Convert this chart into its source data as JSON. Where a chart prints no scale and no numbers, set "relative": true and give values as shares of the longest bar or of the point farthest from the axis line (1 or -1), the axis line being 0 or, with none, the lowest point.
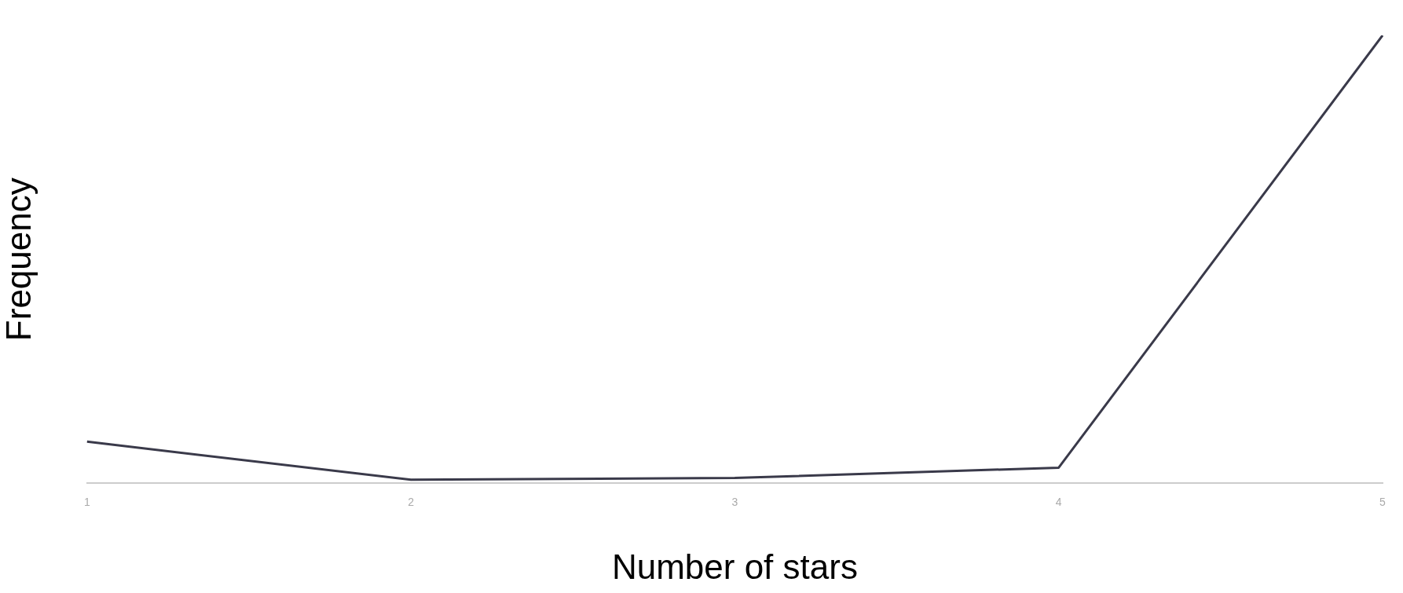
{
  "chart_data": {
    "type": "line",
    "xlabel": "Number of stars",
    "ylabel": "Frequency",
    "relative": true,
    "categories": [
      "1",
      "2",
      "3",
      "4",
      "5"
    ],
    "series": [
      {
        "color": "#3a3a4a",
        "values": [
          0.093,
          0.008,
          0.012,
          0.035,
          1
        ]
      }
    ],
    "marker": "none"
  }
}
